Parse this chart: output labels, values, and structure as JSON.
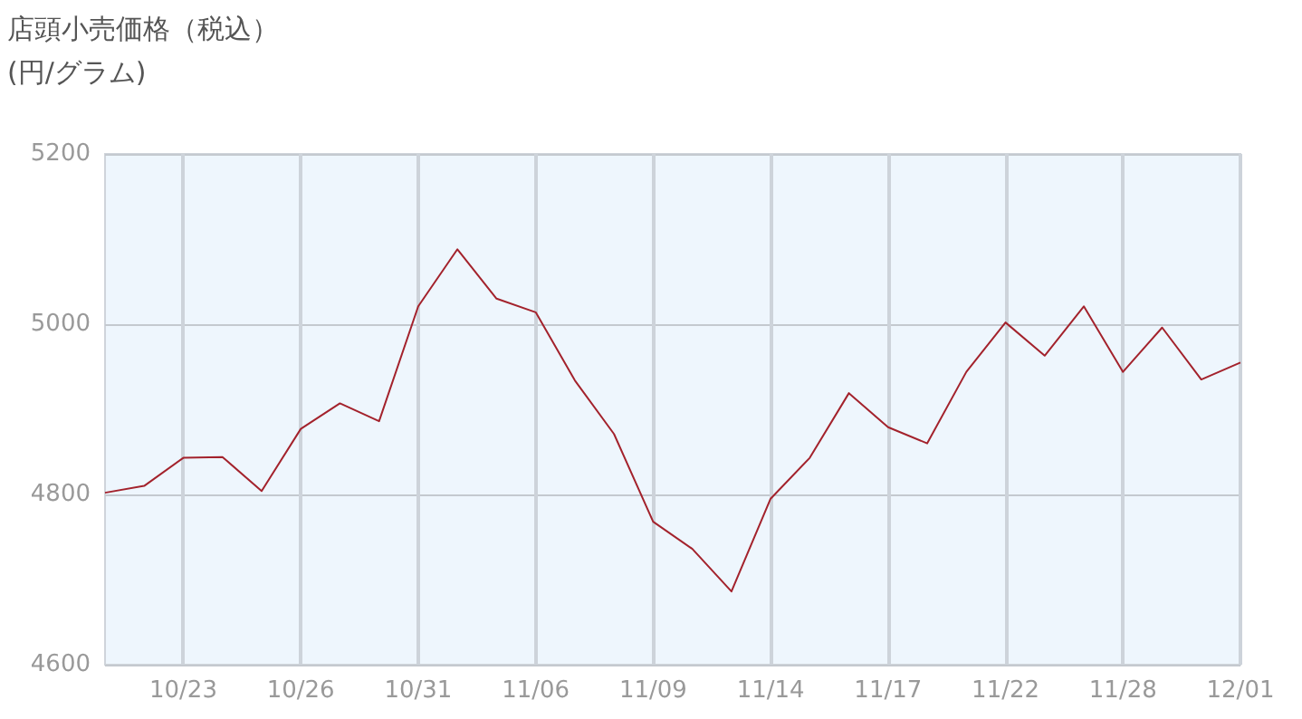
{
  "chart_data": {
    "type": "line",
    "title": "店頭小売価格（税込）",
    "subtitle": "(円/グラム)",
    "categories": [
      null,
      null,
      "10/23",
      null,
      null,
      "10/26",
      null,
      null,
      "10/31",
      null,
      null,
      "11/06",
      null,
      null,
      "11/09",
      null,
      null,
      "11/14",
      null,
      null,
      "11/17",
      null,
      null,
      "11/22",
      null,
      null,
      "11/28",
      null,
      null,
      "12/01"
    ],
    "series": [
      {
        "color": "#a3222c",
        "values": [
          4802,
          4810,
          4843,
          4844,
          4804,
          4877,
          4907,
          4886,
          5021,
          5088,
          5030,
          5014,
          4934,
          4871,
          4768,
          4736,
          4686,
          4795,
          4843,
          4919,
          4879,
          4860,
          4944,
          5002,
          4963,
          5021,
          4944,
          4996,
          4935,
          4955
        ]
      }
    ],
    "ylim": [
      4600,
      5200
    ],
    "yticks": [
      4600,
      4800,
      5000,
      5200
    ],
    "grid": true,
    "marker": "none",
    "line_style": "solid"
  }
}
